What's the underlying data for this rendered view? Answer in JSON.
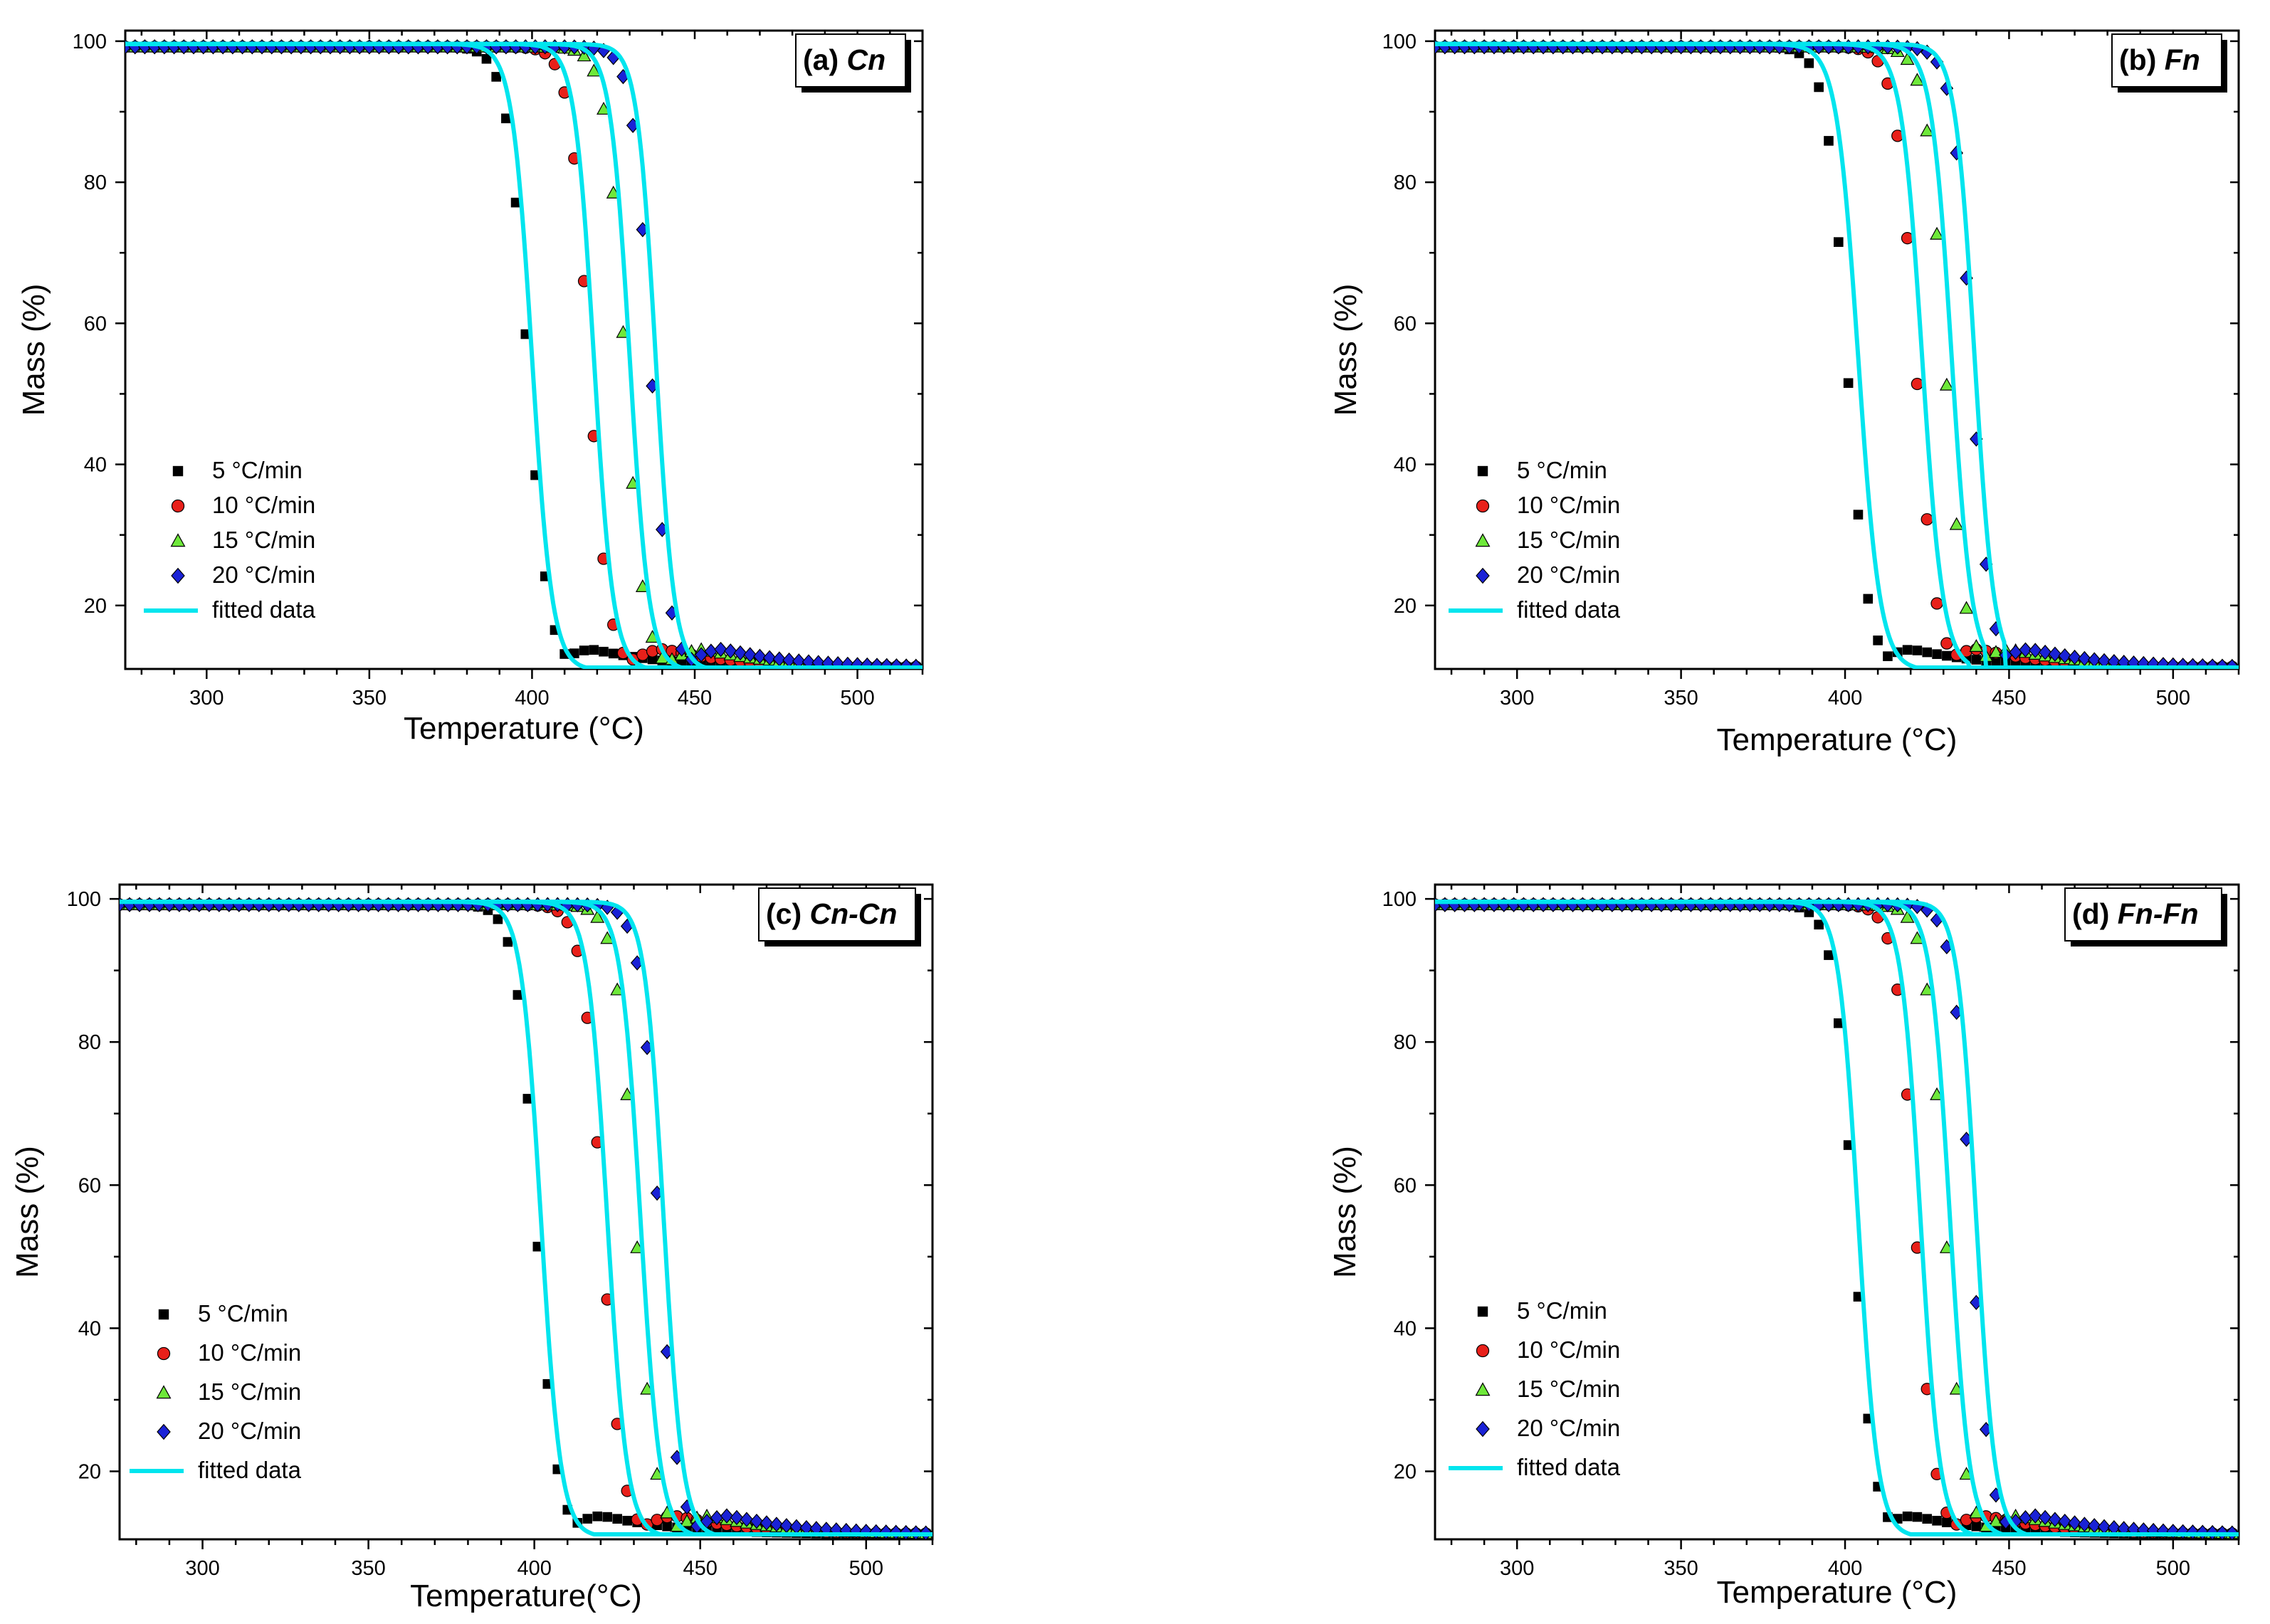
{
  "chart_data": [
    {
      "type": "scatter",
      "panel_label": "(a) Cn",
      "panel_prefix": "(a) ",
      "panel_italic": "Cn",
      "xlabel": "Temperature (°C)",
      "ylabel": "Mass (%)",
      "xlim": [
        275,
        520
      ],
      "ylim": [
        11,
        101.5
      ],
      "xticks": [
        300,
        350,
        400,
        450,
        500
      ],
      "yticks": [
        20,
        40,
        60,
        80,
        100
      ],
      "legend": [
        "5 °C/min",
        "10 °C/min",
        "15 °C/min",
        "20 °C/min",
        "fitted data"
      ],
      "grid": false,
      "legend_position": "lower-left",
      "series": [
        {
          "name": "5 °C/min",
          "marker": "square",
          "color": "#000000",
          "tmid": 398.5,
          "width": 14.0,
          "tail": 418,
          "fit_tmid": 400,
          "fit_width": 13.5,
          "fit_cut": null
        },
        {
          "name": "10 °C/min",
          "marker": "circle",
          "color": "#e8201a",
          "tmid": 417.5,
          "width": 13.0,
          "tail": 440,
          "fit_tmid": 419,
          "fit_width": 13.0,
          "fit_cut": null
        },
        {
          "name": "15 °C/min",
          "marker": "triangle",
          "color": "#6ee83a",
          "tmid": 428.5,
          "width": 13.0,
          "tail": 452,
          "fit_tmid": 430,
          "fit_width": 13.0,
          "fit_cut": null
        },
        {
          "name": "20 °C/min",
          "marker": "diamond",
          "color": "#1a22d6",
          "tmid": 436.5,
          "width": 12.5,
          "tail": 458,
          "fit_tmid": 438,
          "fit_width": 12.5,
          "fit_cut": null
        }
      ]
    },
    {
      "type": "scatter",
      "panel_label": "(b) Fn",
      "panel_prefix": "(b) ",
      "panel_italic": "Fn",
      "xlabel": "Temperature (°C)",
      "ylabel": "Mass (%)",
      "xlim": [
        275,
        520
      ],
      "ylim": [
        11,
        101.5
      ],
      "xticks": [
        300,
        350,
        400,
        450,
        500
      ],
      "yticks": [
        20,
        40,
        60,
        80,
        100
      ],
      "legend": [
        "5 °C/min",
        "10 °C/min",
        "15 °C/min",
        "20 °C/min",
        "fitted data"
      ],
      "grid": false,
      "legend_position": "lower-left",
      "series": [
        {
          "name": "5 °C/min",
          "marker": "square",
          "color": "#000000",
          "tmid": 400.5,
          "width": 14.0,
          "tail": 420,
          "fit_tmid": 404,
          "fit_width": 14.5,
          "fit_cut": 423
        },
        {
          "name": "10 °C/min",
          "marker": "circle",
          "color": "#e8201a",
          "tmid": 421.5,
          "width": 13.5,
          "tail": 440,
          "fit_tmid": 423.5,
          "fit_width": 14.0,
          "fit_cut": 438
        },
        {
          "name": "15 °C/min",
          "marker": "triangle",
          "color": "#6ee83a",
          "tmid": 430.5,
          "width": 13.0,
          "tail": 450,
          "fit_tmid": 432.5,
          "fit_width": 13.5,
          "fit_cut": 443
        },
        {
          "name": "20 °C/min",
          "marker": "diamond",
          "color": "#1a22d6",
          "tmid": 438.5,
          "width": 12.5,
          "tail": 456,
          "fit_tmid": 439.5,
          "fit_width": 13.0,
          "fit_cut": 449
        }
      ]
    },
    {
      "type": "scatter",
      "panel_label": "(c) Cn-Cn",
      "panel_prefix": "(c) ",
      "panel_italic": "Cn-Cn",
      "xlabel": "Temperature(°C)",
      "ylabel": "Mass (%)",
      "xlim": [
        275,
        520
      ],
      "ylim": [
        10.5,
        102
      ],
      "xticks": [
        300,
        350,
        400,
        450,
        500
      ],
      "yticks": [
        20,
        40,
        60,
        80,
        100
      ],
      "legend": [
        "5 °C/min",
        "10 °C/min",
        "15 °C/min",
        "20 °C/min",
        "fitted data"
      ],
      "grid": false,
      "legend_position": "lower-left",
      "series": [
        {
          "name": "5 °C/min",
          "marker": "square",
          "color": "#000000",
          "tmid": 400.5,
          "width": 13.5,
          "tail": 420,
          "fit_tmid": 402,
          "fit_width": 13.0,
          "fit_cut": null
        },
        {
          "name": "10 °C/min",
          "marker": "circle",
          "color": "#e8201a",
          "tmid": 420.5,
          "width": 13.0,
          "tail": 442,
          "fit_tmid": 422,
          "fit_width": 13.0,
          "fit_cut": null
        },
        {
          "name": "15 °C/min",
          "marker": "triangle",
          "color": "#6ee83a",
          "tmid": 430.5,
          "width": 13.0,
          "tail": 452,
          "fit_tmid": 432,
          "fit_width": 13.0,
          "fit_cut": null
        },
        {
          "name": "20 °C/min",
          "marker": "diamond",
          "color": "#1a22d6",
          "tmid": 437.5,
          "width": 12.5,
          "tail": 458,
          "fit_tmid": 439,
          "fit_width": 12.5,
          "fit_cut": null
        }
      ]
    },
    {
      "type": "scatter",
      "panel_label": "(d) Fn-Fn",
      "panel_prefix": "(d) ",
      "panel_italic": "Fn-Fn",
      "xlabel": "Temperature (°C)",
      "ylabel": "Mass (%)",
      "xlim": [
        275,
        520
      ],
      "ylim": [
        10.5,
        102
      ],
      "xticks": [
        300,
        350,
        400,
        450,
        500
      ],
      "yticks": [
        20,
        40,
        60,
        80,
        100
      ],
      "legend": [
        "5 °C/min",
        "10 °C/min",
        "15 °C/min",
        "20 °C/min",
        "fitted data"
      ],
      "grid": false,
      "legend_position": "lower-left",
      "series": [
        {
          "name": "5 °C/min",
          "marker": "square",
          "color": "#000000",
          "tmid": 402.5,
          "width": 13.5,
          "tail": 420,
          "fit_tmid": 404,
          "fit_width": 13.0,
          "fit_cut": null
        },
        {
          "name": "10 °C/min",
          "marker": "circle",
          "color": "#e8201a",
          "tmid": 421.5,
          "width": 13.0,
          "tail": 442,
          "fit_tmid": 423,
          "fit_width": 13.0,
          "fit_cut": null
        },
        {
          "name": "15 °C/min",
          "marker": "triangle",
          "color": "#6ee83a",
          "tmid": 430.5,
          "width": 13.0,
          "tail": 452,
          "fit_tmid": 432,
          "fit_width": 13.0,
          "fit_cut": null
        },
        {
          "name": "20 °C/min",
          "marker": "diamond",
          "color": "#1a22d6",
          "tmid": 438.5,
          "width": 12.5,
          "tail": 458,
          "fit_tmid": 440,
          "fit_width": 12.5,
          "fit_cut": null
        }
      ]
    }
  ],
  "style": {
    "fit_color": "#00e5ee",
    "axis_color": "#000000",
    "background": "#ffffff"
  }
}
